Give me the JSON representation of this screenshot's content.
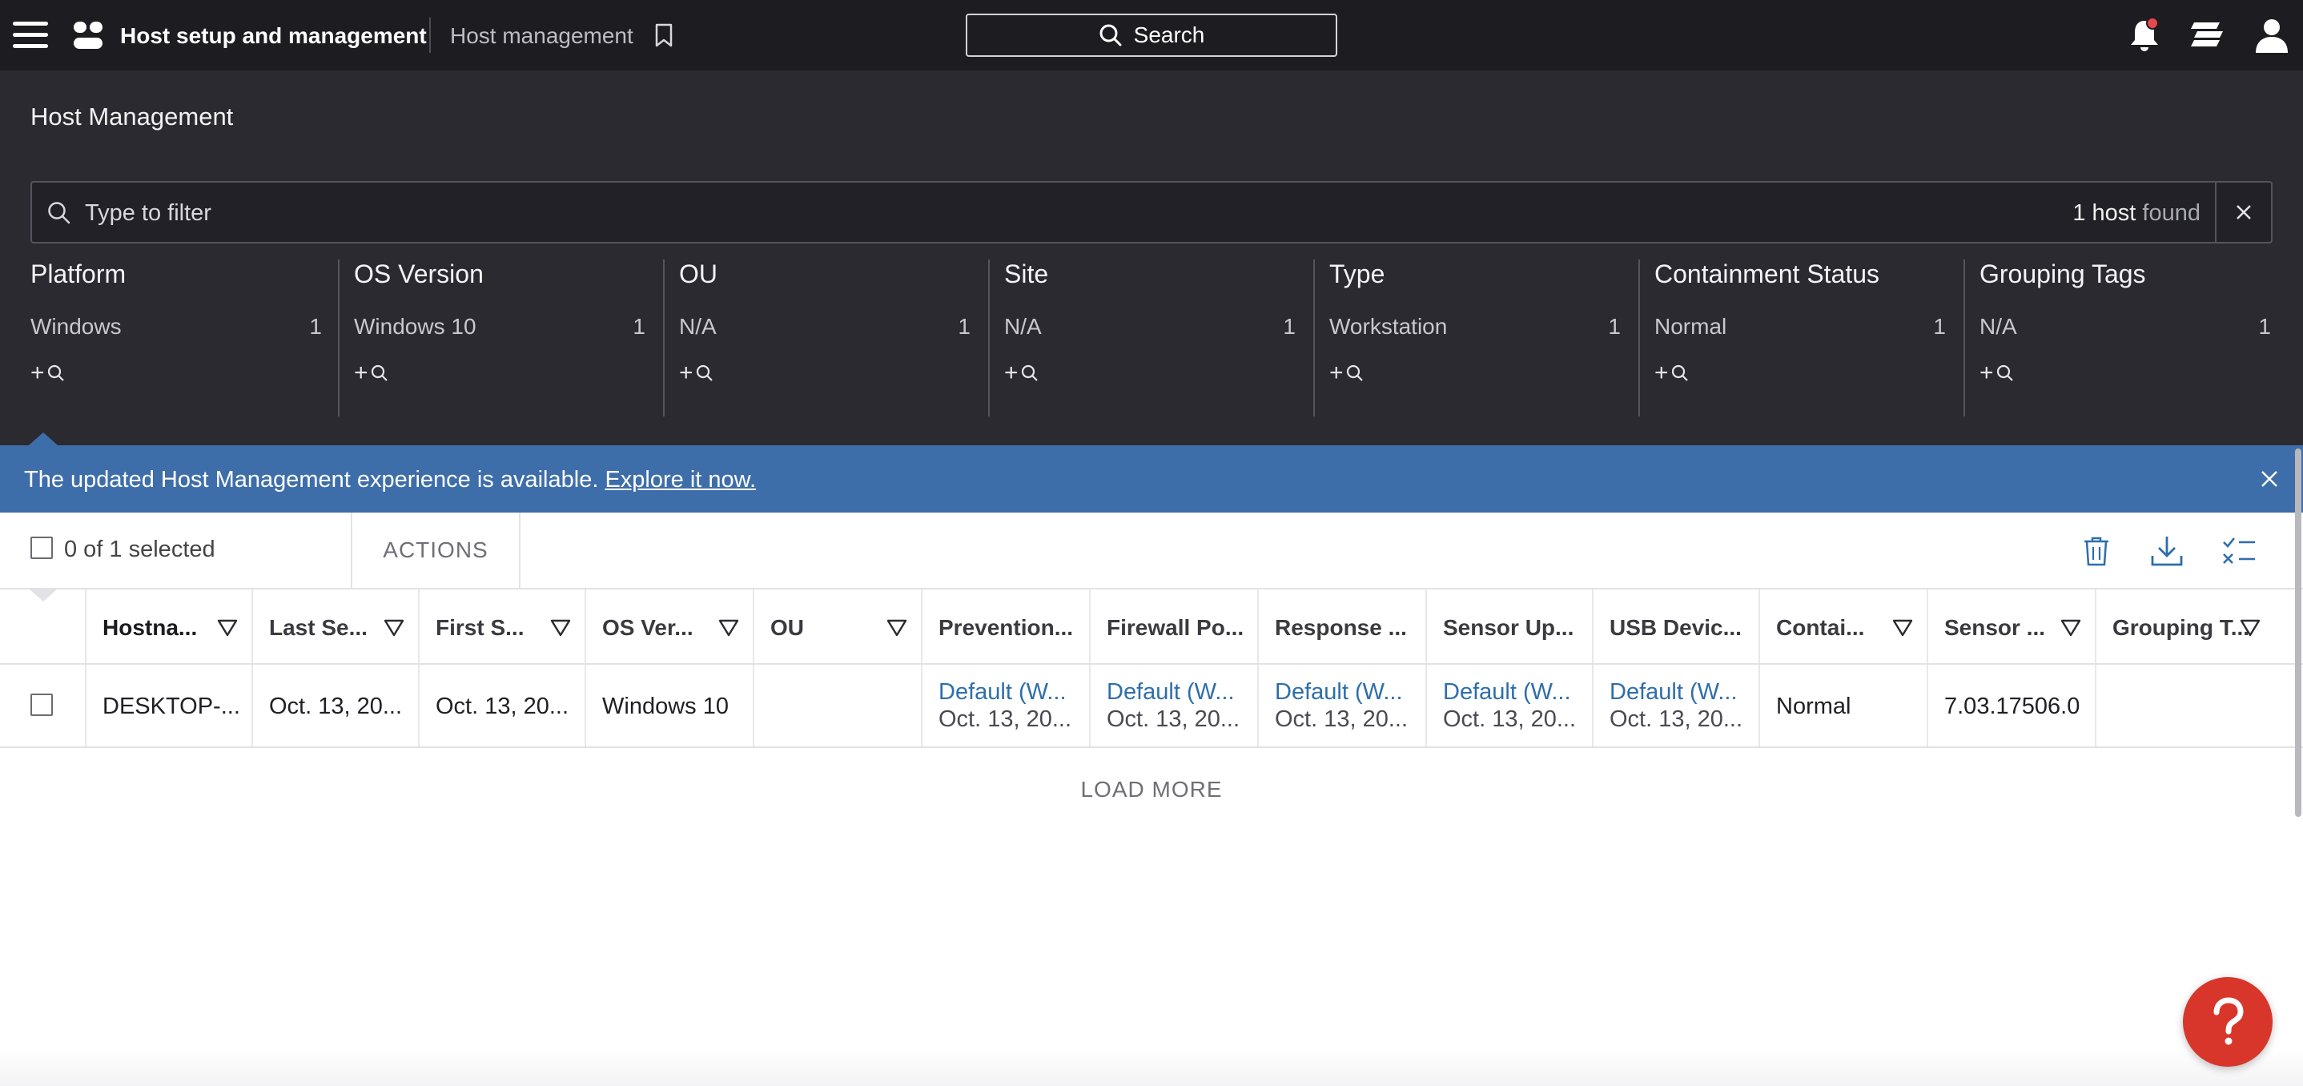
{
  "topbar": {
    "app_title": "Host setup and management",
    "breadcrumb": "Host management",
    "search_label": "Search",
    "notification_dot_color": "#e5484d"
  },
  "header": {
    "page_title": "Host Management",
    "filter_placeholder": "Type to filter",
    "found_count": "1 host",
    "found_word": "found"
  },
  "facets": [
    {
      "title": "Platform",
      "value": "Windows",
      "count": "1"
    },
    {
      "title": "OS Version",
      "value": "Windows 10",
      "count": "1"
    },
    {
      "title": "OU",
      "value": "N/A",
      "count": "1"
    },
    {
      "title": "Site",
      "value": "N/A",
      "count": "1"
    },
    {
      "title": "Type",
      "value": "Workstation",
      "count": "1"
    },
    {
      "title": "Containment Status",
      "value": "Normal",
      "count": "1"
    },
    {
      "title": "Grouping Tags",
      "value": "N/A",
      "count": "1"
    }
  ],
  "banner": {
    "text": "The updated Host Management experience is available.",
    "link": "Explore it now.",
    "color": "#3e6ea9"
  },
  "toolbar": {
    "selected": "0 of 1 selected",
    "actions": "ACTIONS"
  },
  "table": {
    "columns": [
      "Hostna...",
      "Last Se...",
      "First S...",
      "OS Ver...",
      "OU",
      "Prevention...",
      "Firewall Po...",
      "Response ...",
      "Sensor Up...",
      "USB Devic...",
      "Contai...",
      "Sensor ...",
      "Grouping T..."
    ],
    "row": {
      "hostname": "DESKTOP-...",
      "last_seen": "Oct. 13, 20...",
      "first_seen": "Oct. 13, 20...",
      "os_version": "Windows 10",
      "ou": "",
      "prevention": {
        "link": "Default (W...",
        "date": "Oct. 13, 20..."
      },
      "firewall": {
        "link": "Default (W...",
        "date": "Oct. 13, 20..."
      },
      "response": {
        "link": "Default (W...",
        "date": "Oct. 13, 20..."
      },
      "sensor_update": {
        "link": "Default (W...",
        "date": "Oct. 13, 20..."
      },
      "usb_device": {
        "link": "Default (W...",
        "date": "Oct. 13, 20..."
      },
      "containment": "Normal",
      "sensor_version": "7.03.17506.0",
      "grouping_tags": ""
    }
  },
  "load_more": "LOAD MORE",
  "help": {
    "icon": "question-icon",
    "color": "#d9362b"
  }
}
